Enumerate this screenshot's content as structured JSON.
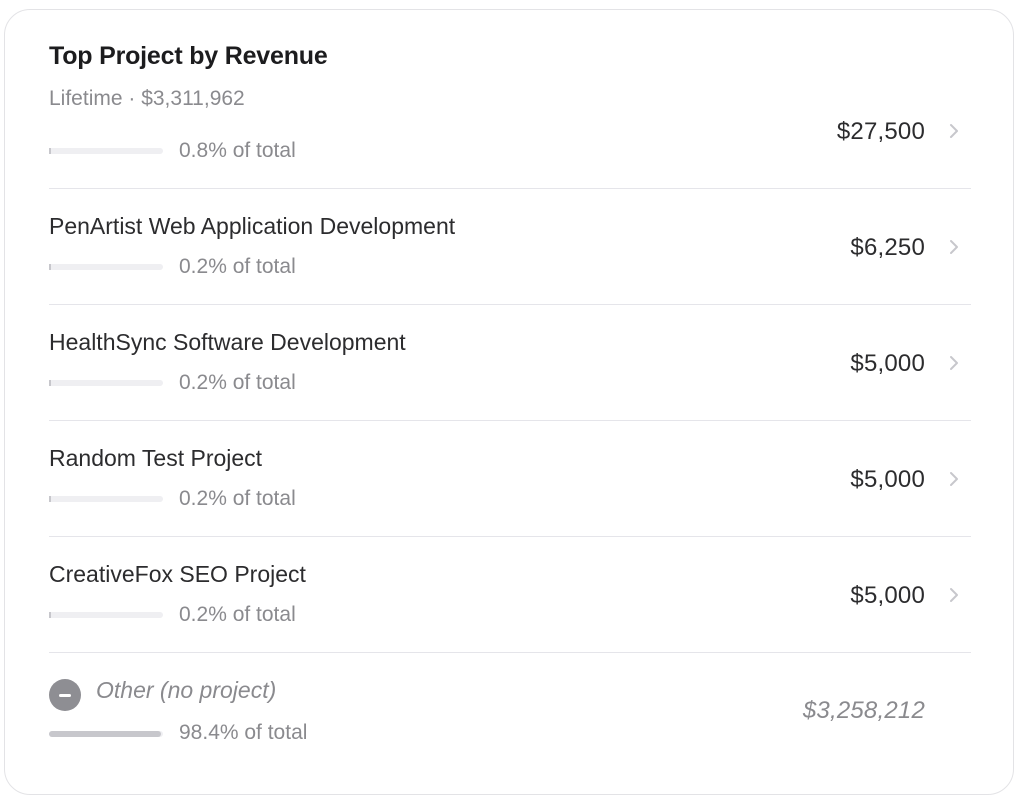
{
  "card": {
    "title": "Top Project by Revenue",
    "subtitle": "Lifetime · $3,311,962"
  },
  "projects": [
    {
      "name": "",
      "share_label": "0.8% of total",
      "share": 0.008,
      "amount": "$27,500"
    },
    {
      "name": "PenArtist Web Application Development",
      "share_label": "0.2% of total",
      "share": 0.002,
      "amount": "$6,250"
    },
    {
      "name": "HealthSync Software Development",
      "share_label": "0.2% of total",
      "share": 0.002,
      "amount": "$5,000"
    },
    {
      "name": "Random Test Project",
      "share_label": "0.2% of total",
      "share": 0.002,
      "amount": "$5,000"
    },
    {
      "name": "CreativeFox SEO Project",
      "share_label": "0.2% of total",
      "share": 0.002,
      "amount": "$5,000"
    }
  ],
  "other": {
    "icon": "minus-circle-icon",
    "name": "Other (no project)",
    "share_label": "98.4% of total",
    "share": 0.984,
    "amount": "$3,258,212"
  },
  "colors": {
    "bar_fill": "#c7c7cc",
    "bar_track": "#efeff2",
    "muted_text": "#8a8a8e",
    "primary_text": "#2c2c2e"
  }
}
